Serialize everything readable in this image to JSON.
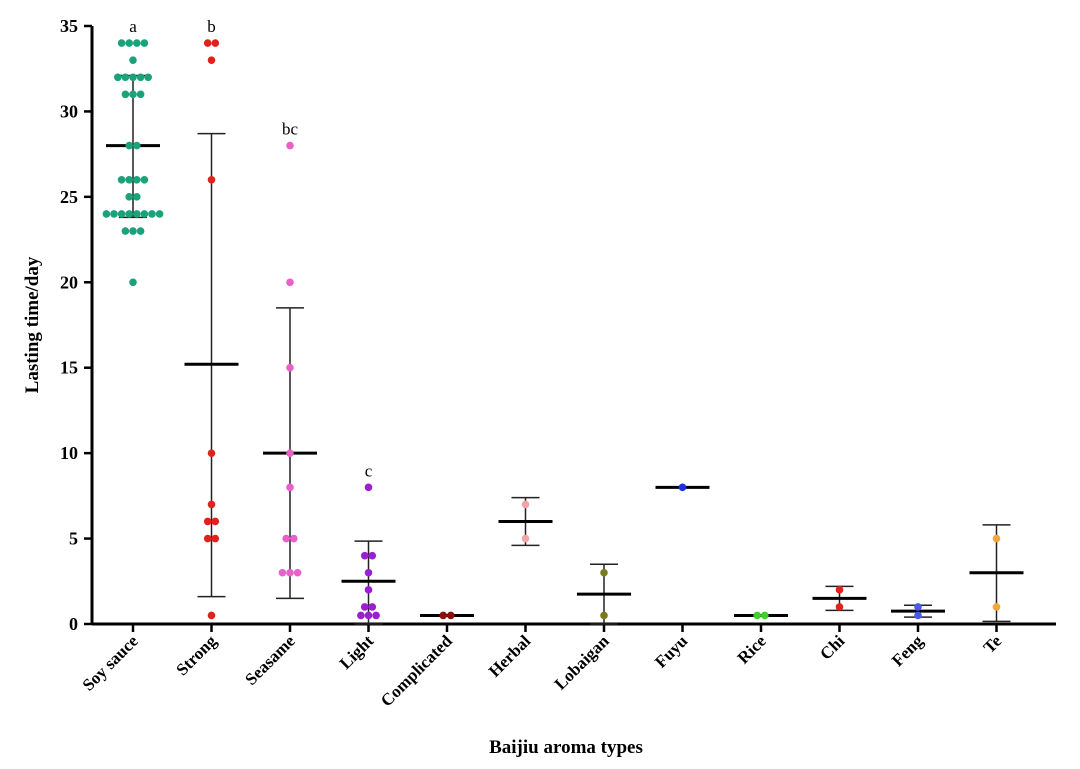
{
  "chart_data": {
    "type": "scatter",
    "title": "",
    "xlabel": "Baijiu aroma types",
    "ylabel": "Lasting time/day",
    "ylim": [
      0,
      35
    ],
    "yticks": [
      0,
      5,
      10,
      15,
      20,
      25,
      30,
      35
    ],
    "grid": false,
    "categories": [
      "Soy sauce",
      "Strong",
      "Seasame",
      "Light",
      "Complicated",
      "Herbal",
      "Lobaigan",
      "Fuyu",
      "Rice",
      "Chi",
      "Feng",
      "Te"
    ],
    "series": [
      {
        "name": "Soy sauce",
        "color": "#1aa37a",
        "mean": 28.0,
        "sd_low": 23.8,
        "sd_high": 32.1,
        "sig": "a",
        "values": [
          34,
          34,
          34,
          34,
          33,
          32,
          32,
          32,
          32,
          32,
          31,
          31,
          31,
          28,
          28,
          26,
          26,
          26,
          26,
          25,
          25,
          24,
          24,
          24,
          24,
          24,
          24,
          24,
          24,
          23,
          23,
          23,
          20
        ]
      },
      {
        "name": "Strong",
        "color": "#e0221c",
        "mean": 15.2,
        "sd_low": 1.6,
        "sd_high": 28.7,
        "sig": "b",
        "values": [
          34,
          34,
          33,
          26,
          10,
          7,
          6,
          6,
          5,
          5,
          0.5
        ]
      },
      {
        "name": "Seasame",
        "color": "#ea5fc8",
        "mean": 10.0,
        "sd_low": 1.5,
        "sd_high": 18.5,
        "sig": "bc",
        "values": [
          28,
          20,
          15,
          10,
          8,
          5,
          5,
          3,
          3,
          3
        ]
      },
      {
        "name": "Light",
        "color": "#9b1fd1",
        "mean": 2.5,
        "sd_low": 0.0,
        "sd_high": 4.85,
        "sig": "c",
        "values": [
          8,
          4,
          4,
          3,
          2,
          1,
          1,
          0.5,
          0.5,
          0.5
        ]
      },
      {
        "name": "Complicated",
        "color": "#8b1010",
        "mean": 0.5,
        "sd_low": 0.5,
        "sd_high": 0.5,
        "sig": "",
        "values": [
          0.5,
          0.5
        ]
      },
      {
        "name": "Herbal",
        "color": "#f3a5a5",
        "mean": 6.0,
        "sd_low": 4.6,
        "sd_high": 7.4,
        "sig": "",
        "values": [
          7,
          5
        ]
      },
      {
        "name": "Lobaigan",
        "color": "#7a7a1c",
        "mean": 1.75,
        "sd_low": 0.0,
        "sd_high": 3.5,
        "sig": "",
        "values": [
          3,
          0.5
        ]
      },
      {
        "name": "Fuyu",
        "color": "#1f2fe0",
        "mean": 8.0,
        "sd_low": 8.0,
        "sd_high": 8.0,
        "sig": "",
        "values": [
          8
        ]
      },
      {
        "name": "Rice",
        "color": "#3fd12b",
        "mean": 0.5,
        "sd_low": 0.5,
        "sd_high": 0.5,
        "sig": "",
        "values": [
          0.5,
          0.5
        ]
      },
      {
        "name": "Chi",
        "color": "#e0221c",
        "mean": 1.5,
        "sd_low": 0.8,
        "sd_high": 2.2,
        "sig": "",
        "values": [
          2,
          1
        ]
      },
      {
        "name": "Feng",
        "color": "#4a5ae8",
        "mean": 0.75,
        "sd_low": 0.4,
        "sd_high": 1.1,
        "sig": "",
        "values": [
          1,
          0.5
        ]
      },
      {
        "name": "Te",
        "color": "#f5a53a",
        "mean": 3.0,
        "sd_low": 0.15,
        "sd_high": 5.8,
        "sig": "",
        "values": [
          5,
          1
        ]
      }
    ]
  }
}
